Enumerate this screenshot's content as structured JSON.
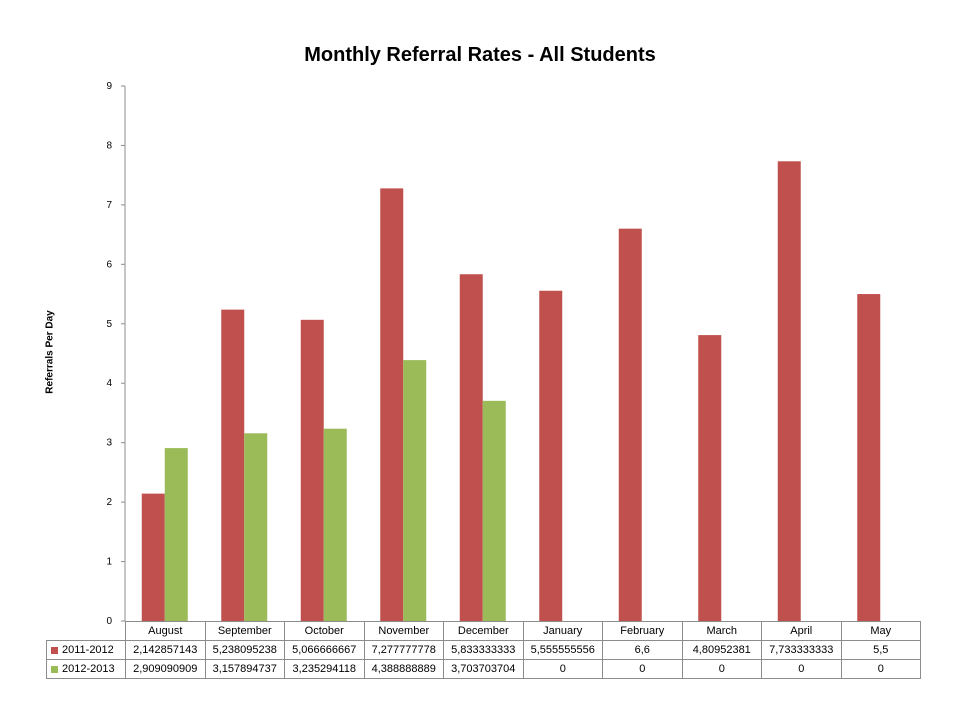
{
  "chart_data": {
    "type": "bar",
    "title": "Monthly Referral Rates - All Students",
    "xlabel": "",
    "ylabel": "Referrals Per Day",
    "ylim": [
      0,
      9
    ],
    "yticks": [
      "0",
      "1",
      "2",
      "3",
      "4",
      "5",
      "6",
      "7",
      "8",
      "9"
    ],
    "grid": false,
    "legend": "data-table",
    "categories": [
      "August",
      "September",
      "October",
      "November",
      "December",
      "January",
      "February",
      "March",
      "April",
      "May"
    ],
    "series": [
      {
        "name": "2011-2012",
        "color": "#c0504d",
        "values": [
          2.142857143,
          5.238095238,
          5.066666667,
          7.277777778,
          5.833333333,
          5.555555556,
          6.6,
          4.80952381,
          7.733333333,
          5.5
        ],
        "labels": [
          "2,142857143",
          "5,238095238",
          "5,066666667",
          "7,277777778",
          "5,833333333",
          "5,555555556",
          "6,6",
          "4,80952381",
          "7,733333333",
          "5,5"
        ]
      },
      {
        "name": "2012-2013",
        "color": "#9bbb59",
        "values": [
          2.909090909,
          3.157894737,
          3.235294118,
          4.388888889,
          3.703703704,
          0,
          0,
          0,
          0,
          0
        ],
        "labels": [
          "2,909090909",
          "3,157894737",
          "3,235294118",
          "4,388888889",
          "3,703703704",
          "0",
          "0",
          "0",
          "0",
          "0"
        ]
      }
    ]
  }
}
